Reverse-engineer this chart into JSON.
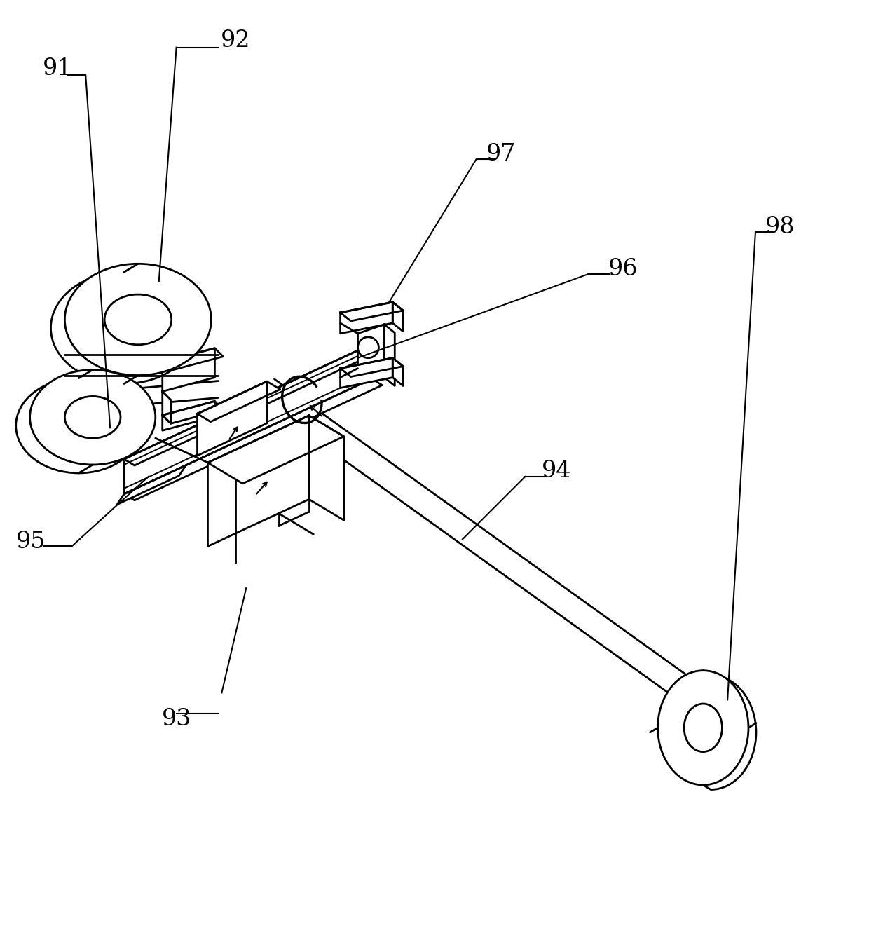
{
  "fig_width": 12.4,
  "fig_height": 13.24,
  "dpi": 100,
  "bg_color": "#ffffff",
  "line_color": "#000000",
  "line_width": 2.0,
  "label_fontsize": 24
}
